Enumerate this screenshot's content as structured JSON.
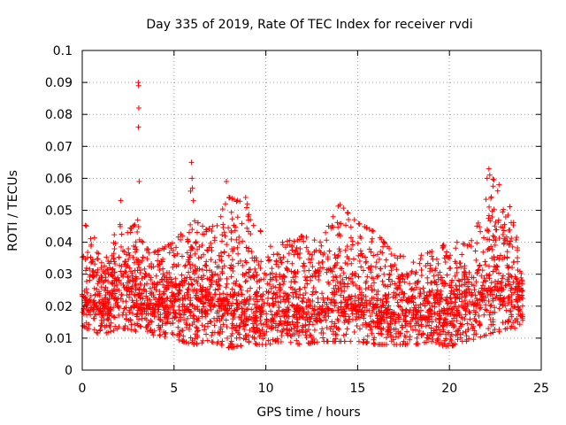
{
  "chart_data": {
    "type": "scatter",
    "title": "Day 335 of 2019, Rate Of TEC Index for receiver rvdi",
    "xlabel": "GPS time / hours",
    "ylabel": "ROTI / TECUs",
    "xlim": [
      0,
      25
    ],
    "ylim": [
      0,
      0.1
    ],
    "xticks": [
      0,
      5,
      10,
      15,
      20,
      25
    ],
    "xtick_labels": [
      "0",
      "5",
      "10",
      "15",
      "20",
      "25"
    ],
    "yticks": [
      0,
      0.01,
      0.02,
      0.03,
      0.04,
      0.05,
      0.06,
      0.07,
      0.08,
      0.09,
      0.1
    ],
    "ytick_labels": [
      "0",
      "0.01",
      "0.02",
      "0.03",
      "0.04",
      "0.05",
      "0.06",
      "0.07",
      "0.08",
      "0.09",
      "0.1"
    ],
    "grid": true,
    "marker": "+",
    "color": "#ff0000",
    "series": [
      {
        "name": "ROTI",
        "envelope": {
          "x": [
            0,
            0.5,
            1,
            1.5,
            2,
            2.5,
            3,
            3.5,
            4,
            5,
            6,
            7,
            8,
            9,
            10,
            11,
            12,
            13,
            14,
            15,
            16,
            17,
            18,
            19,
            20,
            20.5,
            21,
            22,
            22.5,
            23,
            23.5,
            24
          ],
          "y_low": [
            0.014,
            0.012,
            0.011,
            0.012,
            0.013,
            0.013,
            0.012,
            0.011,
            0.011,
            0.01,
            0.008,
            0.009,
            0.007,
            0.008,
            0.008,
            0.009,
            0.008,
            0.009,
            0.009,
            0.009,
            0.008,
            0.008,
            0.008,
            0.009,
            0.007,
            0.009,
            0.009,
            0.011,
            0.012,
            0.012,
            0.012,
            0.012
          ],
          "y_mid": [
            0.024,
            0.022,
            0.021,
            0.023,
            0.025,
            0.026,
            0.024,
            0.022,
            0.021,
            0.022,
            0.023,
            0.023,
            0.022,
            0.022,
            0.019,
            0.019,
            0.02,
            0.02,
            0.024,
            0.023,
            0.02,
            0.018,
            0.019,
            0.02,
            0.019,
            0.02,
            0.021,
            0.025,
            0.028,
            0.03,
            0.026,
            0.022
          ],
          "y_high": [
            0.046,
            0.044,
            0.036,
            0.035,
            0.05,
            0.044,
            0.046,
            0.038,
            0.037,
            0.04,
            0.047,
            0.044,
            0.054,
            0.052,
            0.04,
            0.04,
            0.042,
            0.04,
            0.052,
            0.046,
            0.043,
            0.036,
            0.035,
            0.037,
            0.04,
            0.04,
            0.039,
            0.055,
            0.062,
            0.058,
            0.046,
            0.032
          ]
        },
        "outliers": [
          {
            "x": 3.05,
            "y": 0.09
          },
          {
            "x": 3.07,
            "y": 0.089
          },
          {
            "x": 3.08,
            "y": 0.082
          },
          {
            "x": 3.06,
            "y": 0.076
          },
          {
            "x": 3.1,
            "y": 0.059
          },
          {
            "x": 3.02,
            "y": 0.047
          },
          {
            "x": 5.95,
            "y": 0.065
          },
          {
            "x": 5.98,
            "y": 0.06
          },
          {
            "x": 6.0,
            "y": 0.057
          },
          {
            "x": 5.9,
            "y": 0.056
          },
          {
            "x": 6.05,
            "y": 0.053
          },
          {
            "x": 7.85,
            "y": 0.059
          },
          {
            "x": 8.9,
            "y": 0.054
          },
          {
            "x": 22.15,
            "y": 0.063
          },
          {
            "x": 22.2,
            "y": 0.061
          },
          {
            "x": 22.05,
            "y": 0.06
          },
          {
            "x": 22.7,
            "y": 0.058
          },
          {
            "x": 2.1,
            "y": 0.053
          }
        ],
        "approx_point_count": 3200
      }
    ]
  }
}
